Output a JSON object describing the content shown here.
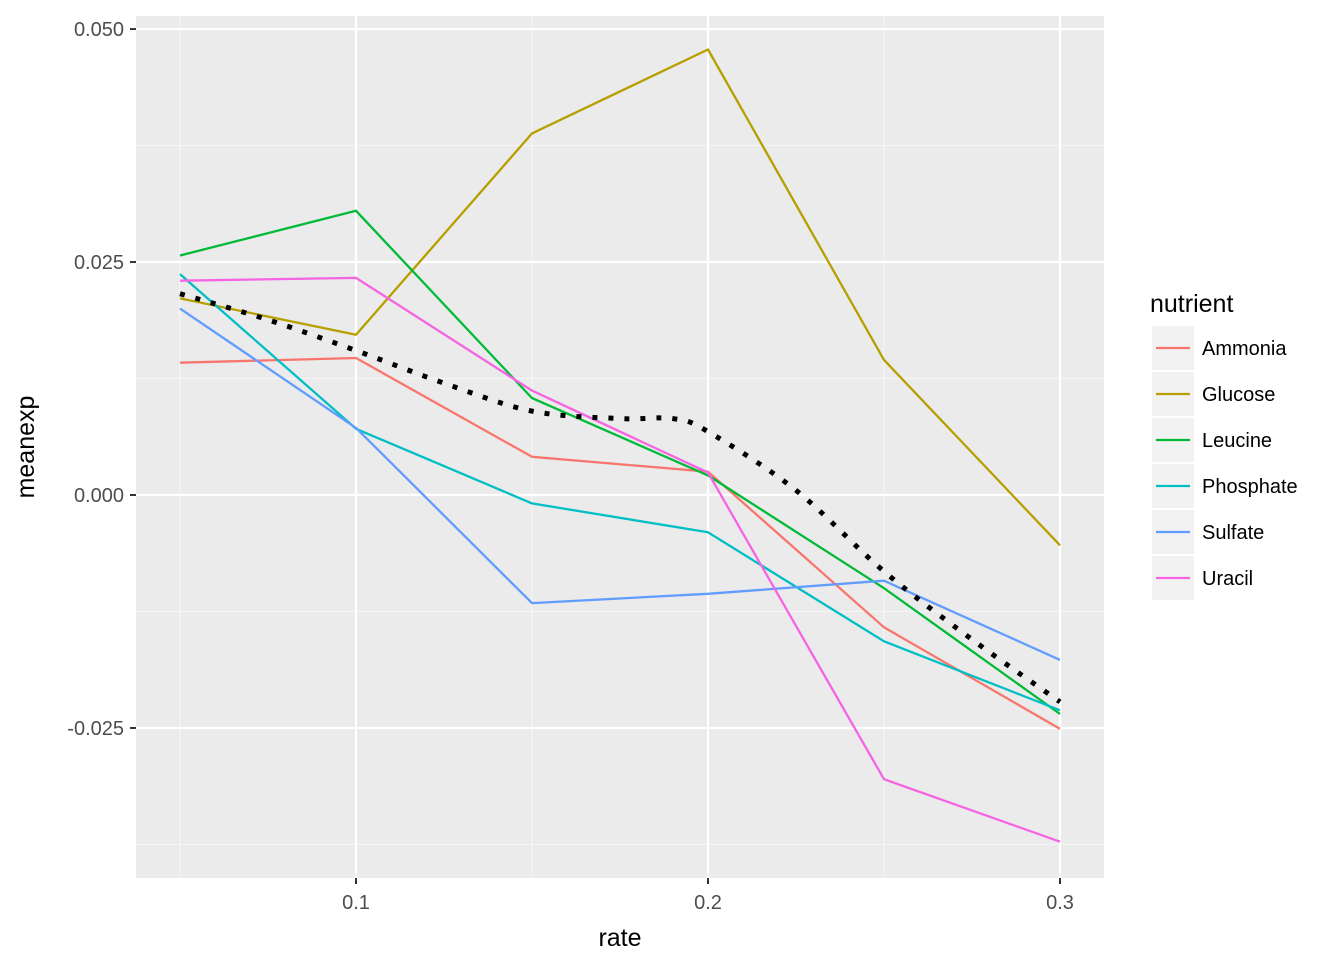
{
  "chart_data": {
    "type": "line",
    "xlabel": "rate",
    "ylabel": "meanexp",
    "xlim": [
      0.0375,
      0.3125
    ],
    "ylim": [
      -0.0411,
      0.0514
    ],
    "x_ticks": [
      0.1,
      0.2,
      0.3
    ],
    "x_tick_labels": [
      "0.1",
      "0.2",
      "0.3"
    ],
    "y_ticks": [
      -0.025,
      0.0,
      0.025,
      0.05
    ],
    "y_tick_labels": [
      "-0.025",
      "0.000",
      "0.025",
      "0.050"
    ],
    "x": [
      0.05,
      0.1,
      0.15,
      0.2,
      0.25,
      0.3
    ],
    "grid": true,
    "legend": {
      "title": "nutrient",
      "position": "right"
    },
    "series": [
      {
        "name": "Ammonia",
        "color": "#F8766D",
        "values": [
          0.0142,
          0.0147,
          0.0041,
          0.0025,
          -0.0142,
          -0.0251
        ]
      },
      {
        "name": "Glucose",
        "color": "#B79F00",
        "values": [
          0.0211,
          0.0172,
          0.0388,
          0.0478,
          0.0145,
          -0.0054
        ]
      },
      {
        "name": "Leucine",
        "color": "#00BA38",
        "values": [
          0.0257,
          0.0305,
          0.0104,
          0.0021,
          -0.01,
          -0.0235
        ]
      },
      {
        "name": "Phosphate",
        "color": "#00BFC4",
        "values": [
          0.0237,
          0.0071,
          -0.0009,
          -0.004,
          -0.0157,
          -0.0231
        ]
      },
      {
        "name": "Sulfate",
        "color": "#619CFF",
        "values": [
          0.02,
          0.0072,
          -0.0116,
          -0.0106,
          -0.0092,
          -0.0177
        ]
      },
      {
        "name": "Uracil",
        "color": "#F564E3",
        "values": [
          0.023,
          0.0233,
          0.0112,
          0.0024,
          -0.0305,
          -0.0372
        ]
      }
    ],
    "overlay": {
      "style": "dotted",
      "color": "#000000",
      "points": [
        [
          0.05,
          0.0216
        ],
        [
          0.075,
          0.0188
        ],
        [
          0.1,
          0.0155
        ],
        [
          0.125,
          0.012
        ],
        [
          0.15,
          0.009
        ],
        [
          0.175,
          0.0082
        ],
        [
          0.19,
          0.0082
        ],
        [
          0.2,
          0.0068
        ],
        [
          0.225,
          0.0005
        ],
        [
          0.25,
          -0.0082
        ],
        [
          0.275,
          -0.0155
        ],
        [
          0.3,
          -0.0222
        ]
      ]
    }
  }
}
